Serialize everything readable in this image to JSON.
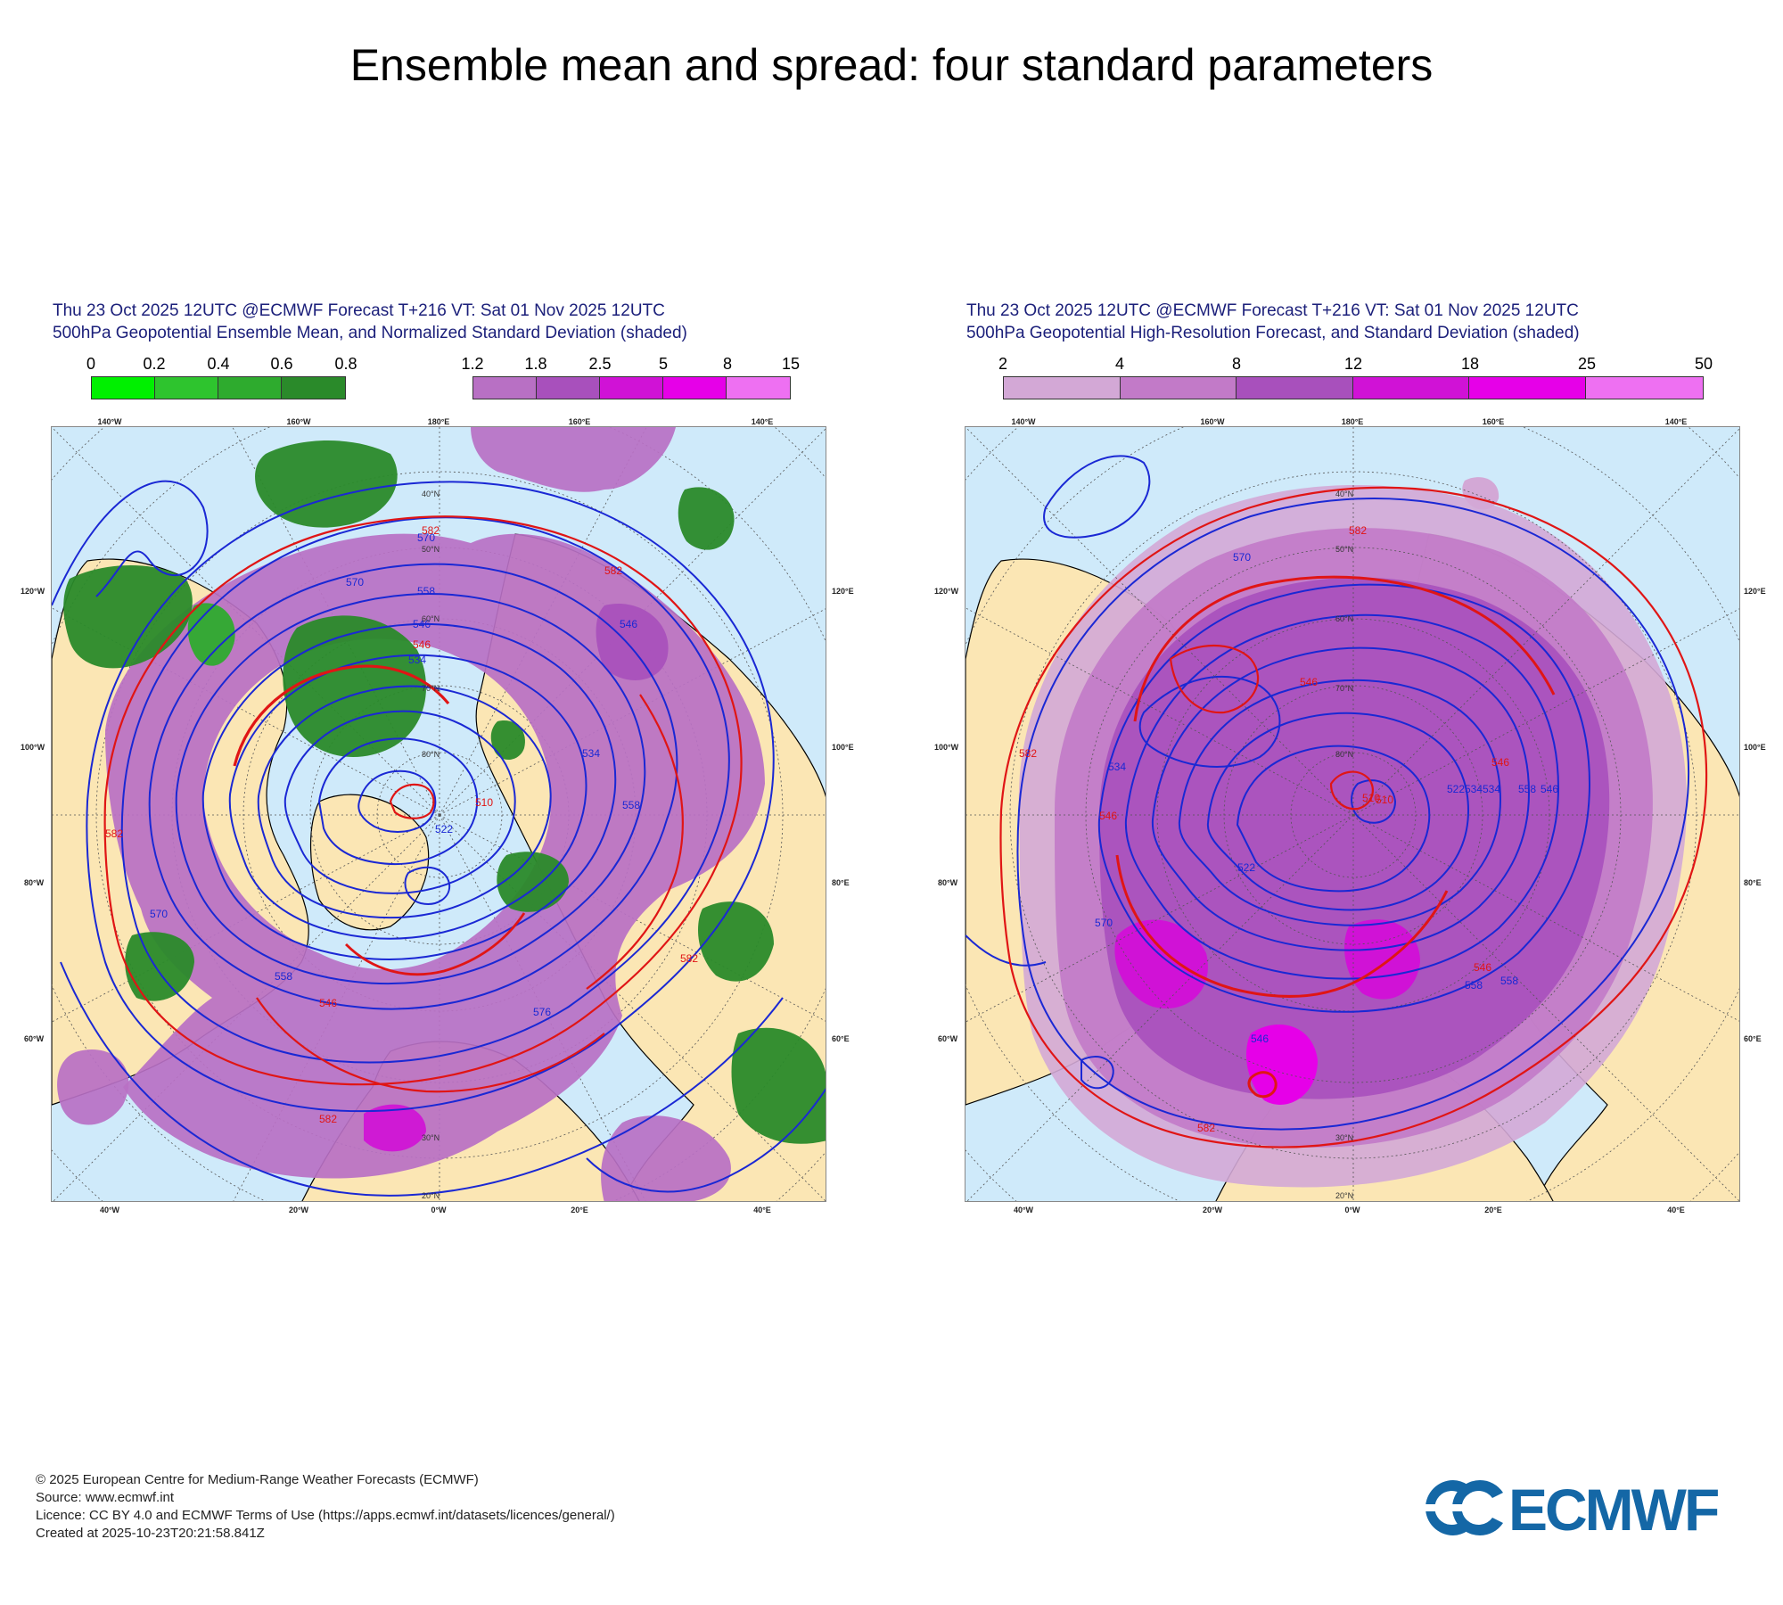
{
  "page": {
    "title": "Ensemble mean and spread: four standard parameters"
  },
  "panels": [
    {
      "title_line1": "Thu 23 Oct 2025 12UTC @ECMWF Forecast T+216 VT: Sat 01 Nov 2025 12UTC",
      "title_line2": "500hPa Geopotential Ensemble Mean, and Normalized Standard Deviation (shaded)",
      "colorbar_green": {
        "ticks": [
          "0",
          "0.2",
          "0.4",
          "0.6",
          "0.8"
        ],
        "colors": [
          "#00f000",
          "#2ec42e",
          "#2eab2e",
          "#2a8a2a"
        ]
      },
      "colorbar_purple": {
        "ticks": [
          "1.2",
          "1.8",
          "2.5",
          "5",
          "8",
          "15"
        ],
        "colors": [
          "#b870c4",
          "#a850bc",
          "#d012d6",
          "#e600e8",
          "#ee70f2"
        ]
      },
      "contours_blue": [
        "570",
        "558",
        "546",
        "534",
        "522",
        "510",
        "534",
        "546",
        "558",
        "570",
        "576",
        "558",
        "570"
      ],
      "contours_red": [
        "582",
        "582",
        "546",
        "582",
        "582",
        "546",
        "582"
      ]
    },
    {
      "title_line1": "Thu 23 Oct 2025 12UTC @ECMWF Forecast T+216 VT: Sat 01 Nov 2025 12UTC",
      "title_line2": "500hPa Geopotential High-Resolution Forecast, and Standard Deviation (shaded)",
      "colorbar": {
        "ticks": [
          "2",
          "4",
          "8",
          "12",
          "18",
          "25",
          "50"
        ],
        "colors": [
          "#d3a8d6",
          "#c27ac8",
          "#a850bc",
          "#d012d6",
          "#e600e8",
          "#ee70f2"
        ]
      },
      "contours_blue": [
        "570",
        "534",
        "522",
        "534",
        "558",
        "546",
        "510",
        "522",
        "534",
        "558",
        "570",
        "558",
        "546"
      ],
      "contours_red": [
        "582",
        "546",
        "546",
        "510",
        "546",
        "582",
        "582",
        "546"
      ]
    }
  ],
  "map_labels": {
    "lon_top": [
      "140°W",
      "160°W",
      "180°E",
      "160°E",
      "140°E"
    ],
    "lon_bottom": [
      "40°W",
      "20°W",
      "0°W",
      "20°E",
      "40°E"
    ],
    "lat_left": [
      "120°W",
      "100°W",
      "80°W",
      "60°W"
    ],
    "lat_right": [
      "120°E",
      "100°E",
      "80°E",
      "60°E"
    ],
    "lat_circles": [
      "20°N",
      "30°N",
      "40°N",
      "50°N",
      "60°N",
      "70°N",
      "80°N"
    ]
  },
  "footer": {
    "line1": "© 2025 European Centre for Medium-Range Weather Forecasts (ECMWF)",
    "line2": "Source: www.ecmwf.int",
    "line3": "Licence: CC BY 4.0 and ECMWF Terms of Use (https://apps.ecmwf.int/datasets/licences/general/)",
    "line4": "Created at 2025-10-23T20:21:58.841Z"
  },
  "logo": {
    "text": "ECMWF",
    "color": "#1467a6"
  }
}
